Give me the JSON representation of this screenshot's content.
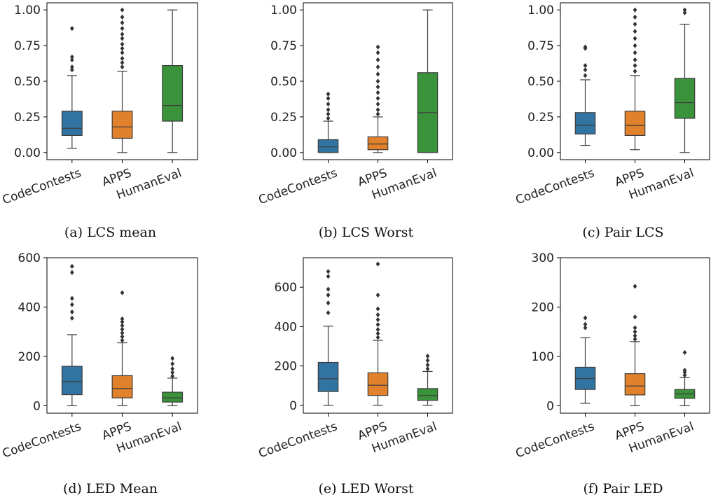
{
  "chart_data": [
    {
      "type": "box",
      "caption": "(a) LCS mean",
      "categories": [
        "CodeContests",
        "APPS",
        "HumanEval"
      ],
      "yticks": [
        "0.00",
        "0.25",
        "0.50",
        "0.75",
        "1.00"
      ],
      "ytick_values": [
        0,
        0.25,
        0.5,
        0.75,
        1.0
      ],
      "ylim": [
        -0.05,
        1.05
      ],
      "boxes": [
        {
          "min": 0.03,
          "q1": 0.12,
          "median": 0.17,
          "q3": 0.29,
          "max": 0.54,
          "outliers": [
            0.58,
            0.6,
            0.65,
            0.67,
            0.87
          ]
        },
        {
          "min": 0.0,
          "q1": 0.1,
          "median": 0.18,
          "q3": 0.29,
          "max": 0.57,
          "outliers": [
            0.6,
            0.63,
            0.66,
            0.7,
            0.73,
            0.76,
            0.8,
            0.83,
            0.87,
            0.91,
            0.95,
            1.0
          ]
        },
        {
          "min": 0.0,
          "q1": 0.22,
          "median": 0.33,
          "q3": 0.61,
          "max": 1.0,
          "outliers": []
        }
      ]
    },
    {
      "type": "box",
      "caption": "(b) LCS Worst",
      "categories": [
        "CodeContests",
        "APPS",
        "HumanEval"
      ],
      "yticks": [
        "0.00",
        "0.25",
        "0.50",
        "0.75",
        "1.00"
      ],
      "ytick_values": [
        0,
        0.25,
        0.5,
        0.75,
        1.0
      ],
      "ylim": [
        -0.05,
        1.05
      ],
      "boxes": [
        {
          "min": 0.0,
          "q1": 0.0,
          "median": 0.04,
          "q3": 0.09,
          "max": 0.22,
          "outliers": [
            0.24,
            0.27,
            0.3,
            0.34,
            0.38,
            0.41
          ]
        },
        {
          "min": 0.0,
          "q1": 0.02,
          "median": 0.06,
          "q3": 0.11,
          "max": 0.25,
          "outliers": [
            0.27,
            0.3,
            0.34,
            0.38,
            0.42,
            0.46,
            0.5,
            0.55,
            0.6,
            0.65,
            0.7,
            0.74
          ]
        },
        {
          "min": 0.0,
          "q1": 0.0,
          "median": 0.28,
          "q3": 0.56,
          "max": 1.0,
          "outliers": []
        }
      ]
    },
    {
      "type": "box",
      "caption": "(c) Pair LCS",
      "categories": [
        "CodeContests",
        "APPS",
        "HumanEval"
      ],
      "yticks": [
        "0.00",
        "0.25",
        "0.50",
        "0.75",
        "1.00"
      ],
      "ytick_values": [
        0,
        0.25,
        0.5,
        0.75,
        1.0
      ],
      "ylim": [
        -0.05,
        1.05
      ],
      "boxes": [
        {
          "min": 0.05,
          "q1": 0.13,
          "median": 0.19,
          "q3": 0.28,
          "max": 0.51,
          "outliers": [
            0.54,
            0.58,
            0.61,
            0.73,
            0.74
          ]
        },
        {
          "min": 0.02,
          "q1": 0.12,
          "median": 0.19,
          "q3": 0.29,
          "max": 0.54,
          "outliers": [
            0.57,
            0.61,
            0.65,
            0.7,
            0.75,
            0.8,
            0.85,
            0.9,
            0.95,
            1.0
          ]
        },
        {
          "min": 0.0,
          "q1": 0.24,
          "median": 0.35,
          "q3": 0.52,
          "max": 0.9,
          "outliers": [
            0.98,
            1.0
          ]
        }
      ]
    },
    {
      "type": "box",
      "caption": "(d) LED Mean",
      "categories": [
        "CodeContests",
        "APPS",
        "HumanEval"
      ],
      "yticks": [
        "0",
        "200",
        "400",
        "600"
      ],
      "ytick_values": [
        0,
        200,
        400,
        600
      ],
      "ylim": [
        -30,
        600
      ],
      "boxes": [
        {
          "min": 0,
          "q1": 45,
          "median": 98,
          "q3": 160,
          "max": 288,
          "outliers": [
            355,
            380,
            410,
            435,
            540,
            565
          ]
        },
        {
          "min": 0,
          "q1": 32,
          "median": 70,
          "q3": 122,
          "max": 255,
          "outliers": [
            265,
            280,
            295,
            310,
            325,
            340,
            352,
            458
          ]
        },
        {
          "min": 0,
          "q1": 15,
          "median": 32,
          "q3": 55,
          "max": 112,
          "outliers": [
            120,
            135,
            150,
            170,
            192
          ]
        }
      ]
    },
    {
      "type": "box",
      "caption": "(e) LED Worst",
      "categories": [
        "CodeContests",
        "APPS",
        "HumanEval"
      ],
      "yticks": [
        "0",
        "200",
        "400",
        "600"
      ],
      "ytick_values": [
        0,
        200,
        400,
        600
      ],
      "ylim": [
        -40,
        750
      ],
      "boxes": [
        {
          "min": 0,
          "q1": 70,
          "median": 135,
          "q3": 218,
          "max": 402,
          "outliers": [
            470,
            520,
            560,
            590,
            655,
            680
          ]
        },
        {
          "min": 0,
          "q1": 50,
          "median": 102,
          "q3": 165,
          "max": 330,
          "outliers": [
            345,
            365,
            385,
            410,
            435,
            460,
            490,
            560,
            718
          ]
        },
        {
          "min": 0,
          "q1": 25,
          "median": 50,
          "q3": 85,
          "max": 172,
          "outliers": [
            185,
            205,
            228,
            250
          ]
        }
      ]
    },
    {
      "type": "box",
      "caption": "(f) Pair LED",
      "categories": [
        "CodeContests",
        "APPS",
        "HumanEval"
      ],
      "yticks": [
        "0",
        "100",
        "200",
        "300"
      ],
      "ytick_values": [
        0,
        100,
        200,
        300
      ],
      "ylim": [
        -15,
        300
      ],
      "boxes": [
        {
          "min": 5,
          "q1": 33,
          "median": 55,
          "q3": 78,
          "max": 138,
          "outliers": [
            158,
            165,
            178
          ]
        },
        {
          "min": 0,
          "q1": 22,
          "median": 40,
          "q3": 65,
          "max": 130,
          "outliers": [
            135,
            142,
            150,
            158,
            180,
            242
          ]
        },
        {
          "min": 0,
          "q1": 15,
          "median": 24,
          "q3": 33,
          "max": 57,
          "outliers": [
            62,
            68,
            72,
            108
          ]
        }
      ]
    }
  ],
  "colors": [
    "#3274a1",
    "#e1812c",
    "#3a923a"
  ],
  "outlier_color": "#333333"
}
